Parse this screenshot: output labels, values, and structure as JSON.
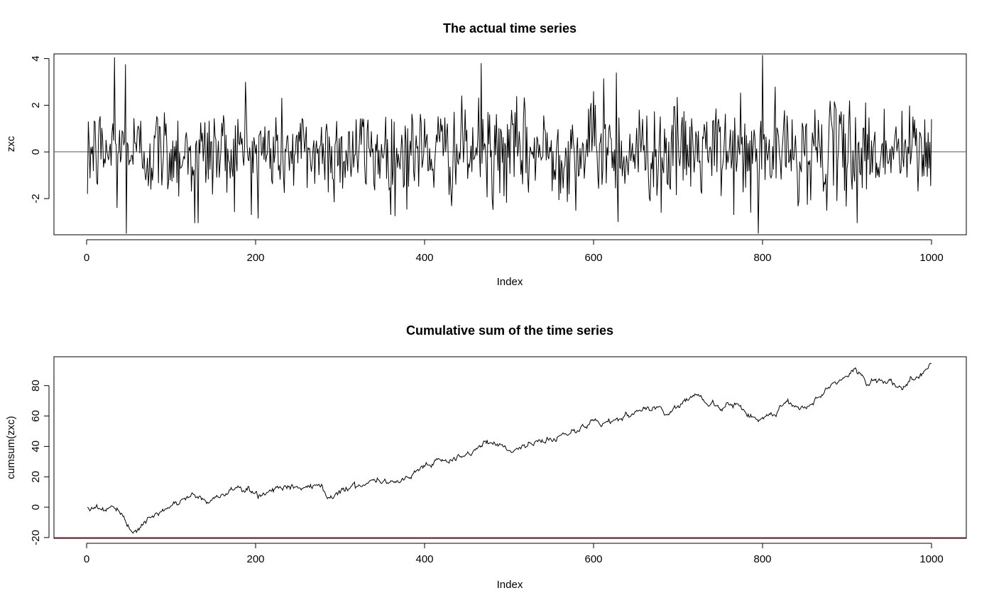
{
  "chart_data": [
    {
      "type": "line",
      "title": "The actual time series",
      "xlabel": "Index",
      "ylabel": "zxc",
      "xlim": [
        0,
        1000
      ],
      "ylim": [
        -3.55,
        4.2
      ],
      "xticks": [
        "0",
        "200",
        "400",
        "600",
        "800",
        "1000"
      ],
      "yticks": [
        "-2",
        "0",
        "2",
        "4"
      ],
      "hline": 0,
      "grid": false,
      "legend": "none",
      "n_points": 1000,
      "series_stats": {
        "sd": 1.0,
        "min": -3.5,
        "max": 4.15
      },
      "notable_points": [
        {
          "x": 1,
          "y": -1.8
        },
        {
          "x": 2,
          "y": 1.3
        },
        {
          "x": 33,
          "y": 4.05
        },
        {
          "x": 36,
          "y": -2.4
        },
        {
          "x": 46,
          "y": 3.75
        },
        {
          "x": 47,
          "y": -3.5
        },
        {
          "x": 128,
          "y": -3.05
        },
        {
          "x": 132,
          "y": -3.05
        },
        {
          "x": 188,
          "y": 3.0
        },
        {
          "x": 203,
          "y": -2.85
        },
        {
          "x": 365,
          "y": -2.75
        },
        {
          "x": 467,
          "y": 3.8
        },
        {
          "x": 480,
          "y": -2.0
        },
        {
          "x": 600,
          "y": 2.6
        },
        {
          "x": 612,
          "y": 3.15
        },
        {
          "x": 627,
          "y": 3.4
        },
        {
          "x": 629,
          "y": -3.0
        },
        {
          "x": 680,
          "y": -2.6
        },
        {
          "x": 786,
          "y": -2.6
        },
        {
          "x": 795,
          "y": -3.5
        },
        {
          "x": 800,
          "y": 4.15
        },
        {
          "x": 903,
          "y": 2.2
        },
        {
          "x": 912,
          "y": -3.05
        },
        {
          "x": 1000,
          "y": 1.4
        }
      ]
    },
    {
      "type": "line",
      "title": "Cumulative sum of the time series",
      "xlabel": "Index",
      "ylabel": "cumsum(zxc)",
      "xlim": [
        0,
        1000
      ],
      "ylim": [
        -20.5,
        99
      ],
      "xticks": [
        "0",
        "200",
        "400",
        "600",
        "800",
        "1000"
      ],
      "yticks": [
        "-20",
        "0",
        "20",
        "40",
        "60",
        "80"
      ],
      "hline": -20,
      "hline_color": "#b22222",
      "grid": false,
      "legend": "none",
      "n_points": 1000,
      "knots": [
        [
          1,
          0
        ],
        [
          10,
          0
        ],
        [
          20,
          -1
        ],
        [
          30,
          0
        ],
        [
          38,
          -3
        ],
        [
          45,
          -10
        ],
        [
          50,
          -13
        ],
        [
          55,
          -16
        ],
        [
          65,
          -12
        ],
        [
          80,
          -6
        ],
        [
          100,
          0
        ],
        [
          115,
          6
        ],
        [
          125,
          8
        ],
        [
          135,
          6
        ],
        [
          145,
          3
        ],
        [
          160,
          8
        ],
        [
          175,
          13
        ],
        [
          190,
          11
        ],
        [
          205,
          8
        ],
        [
          220,
          12
        ],
        [
          240,
          14
        ],
        [
          260,
          12
        ],
        [
          275,
          17
        ],
        [
          285,
          6
        ],
        [
          300,
          11
        ],
        [
          320,
          14
        ],
        [
          340,
          18
        ],
        [
          360,
          17
        ],
        [
          375,
          18
        ],
        [
          390,
          24
        ],
        [
          400,
          28
        ],
        [
          420,
          30
        ],
        [
          445,
          32
        ],
        [
          460,
          38
        ],
        [
          475,
          43
        ],
        [
          490,
          41
        ],
        [
          505,
          37
        ],
        [
          520,
          41
        ],
        [
          545,
          44
        ],
        [
          560,
          47
        ],
        [
          580,
          51
        ],
        [
          600,
          56
        ],
        [
          620,
          56
        ],
        [
          640,
          60
        ],
        [
          660,
          64
        ],
        [
          675,
          67
        ],
        [
          685,
          61
        ],
        [
          700,
          67
        ],
        [
          720,
          75
        ],
        [
          735,
          68
        ],
        [
          750,
          66
        ],
        [
          770,
          67
        ],
        [
          785,
          60
        ],
        [
          800,
          58
        ],
        [
          815,
          62
        ],
        [
          830,
          70
        ],
        [
          845,
          65
        ],
        [
          860,
          69
        ],
        [
          880,
          80
        ],
        [
          895,
          85
        ],
        [
          910,
          90
        ],
        [
          925,
          81
        ],
        [
          940,
          84
        ],
        [
          952,
          82
        ],
        [
          965,
          77
        ],
        [
          975,
          83
        ],
        [
          990,
          89
        ],
        [
          1000,
          94
        ]
      ]
    }
  ]
}
